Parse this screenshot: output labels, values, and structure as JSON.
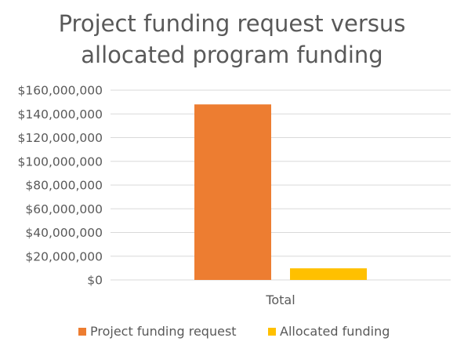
{
  "chart_data": {
    "type": "bar",
    "title_lines": [
      "Project funding request versus",
      "allocated program funding"
    ],
    "categories": [
      "Total"
    ],
    "series": [
      {
        "name": "Project funding request",
        "values": [
          148000000
        ],
        "color": "#ED7D31"
      },
      {
        "name": "Allocated funding",
        "values": [
          9800000
        ],
        "color": "#FFC000"
      }
    ],
    "ylim": [
      0,
      160000000
    ],
    "yticks": [
      0,
      20000000,
      40000000,
      60000000,
      80000000,
      100000000,
      120000000,
      140000000,
      160000000
    ],
    "ytick_labels": [
      "$0",
      "$20,000,000",
      "$40,000,000",
      "$60,000,000",
      "$80,000,000",
      "$100,000,000",
      "$120,000,000",
      "$140,000,000",
      "$160,000,000"
    ],
    "grid": true,
    "gridline_color": "#D9D9D9",
    "legend_position": "bottom"
  }
}
